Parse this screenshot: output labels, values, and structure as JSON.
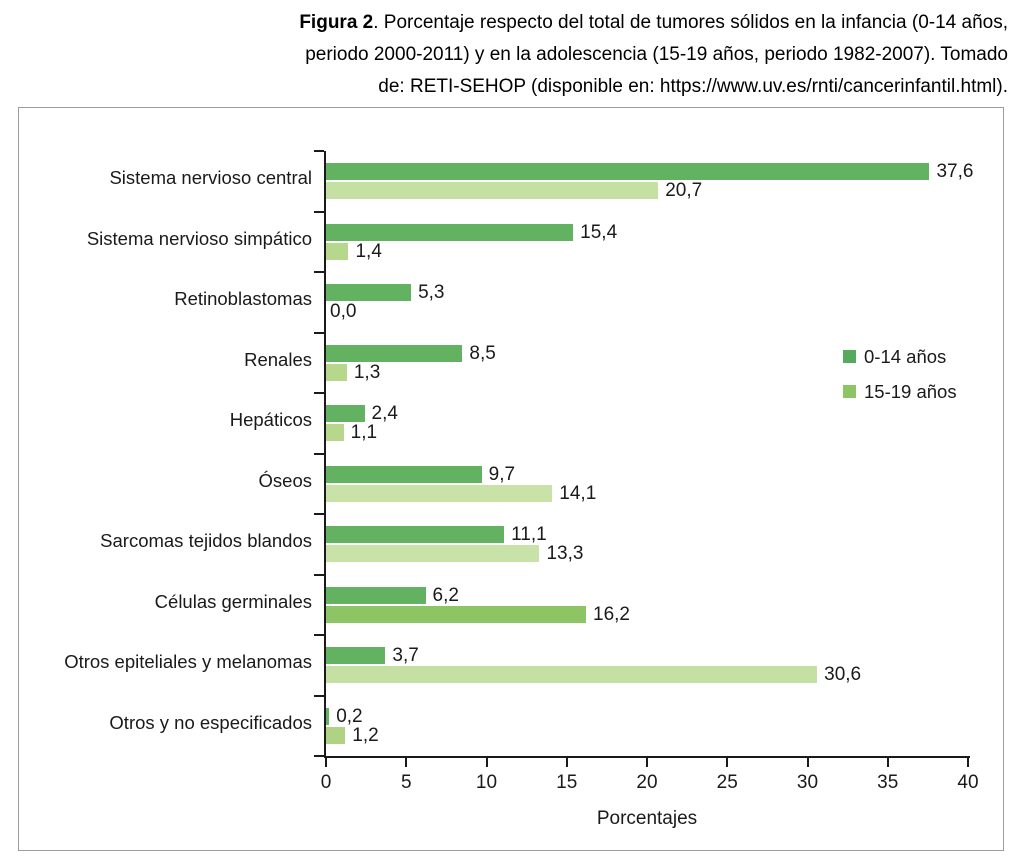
{
  "caption": {
    "line1_bold": "Figura 2",
    "line1_rest": ". Porcentaje respecto del total de tumores sólidos en la infancia (0-14 años,",
    "line2": "periodo 2000-2011) y en la adolescencia (15-19 años, periodo 1982-2007). Tomado",
    "line3": "de: RETI-SEHOP (disponible en: https://www.uv.es/rnti/cancerinfantil.html)."
  },
  "legend": {
    "items": [
      {
        "label": "0-14 años",
        "color": "#57A95B"
      },
      {
        "label": "15-19 años",
        "color": "#8DC464"
      }
    ]
  },
  "chart_data": {
    "type": "bar",
    "orientation": "horizontal",
    "xlabel": "Porcentajes",
    "xlim": [
      0,
      40
    ],
    "xticks": [
      0,
      5,
      10,
      15,
      20,
      25,
      30,
      35,
      40
    ],
    "decimal_separator": ",",
    "grid": false,
    "legend_position": "right",
    "categories": [
      "Sistema nervioso central",
      "Sistema nervioso simpático",
      "Retinoblastomas",
      "Renales",
      "Hepáticos",
      "Óseos",
      "Sarcomas tejidos blandos",
      "Células germinales",
      "Otros epiteliales y melanomas",
      "Otros y no especificados"
    ],
    "series": [
      {
        "name": "0-14 años",
        "color": "#62B262",
        "values": [
          37.6,
          15.4,
          5.3,
          8.5,
          2.4,
          9.7,
          11.1,
          6.2,
          3.7,
          0.2
        ]
      },
      {
        "name": "15-19 años",
        "color": "#C5E0A3",
        "values": [
          20.7,
          1.4,
          0.0,
          1.3,
          1.1,
          14.1,
          13.3,
          16.2,
          30.6,
          1.2
        ],
        "bar_colors": [
          "#C5E0A3",
          "#B7D88C",
          "#C5E0A3",
          "#B7D88C",
          "#B7D88C",
          "#C9E2A8",
          "#C9E2A8",
          "#8DC464",
          "#C5E0A3",
          "#AFD383"
        ]
      }
    ]
  }
}
